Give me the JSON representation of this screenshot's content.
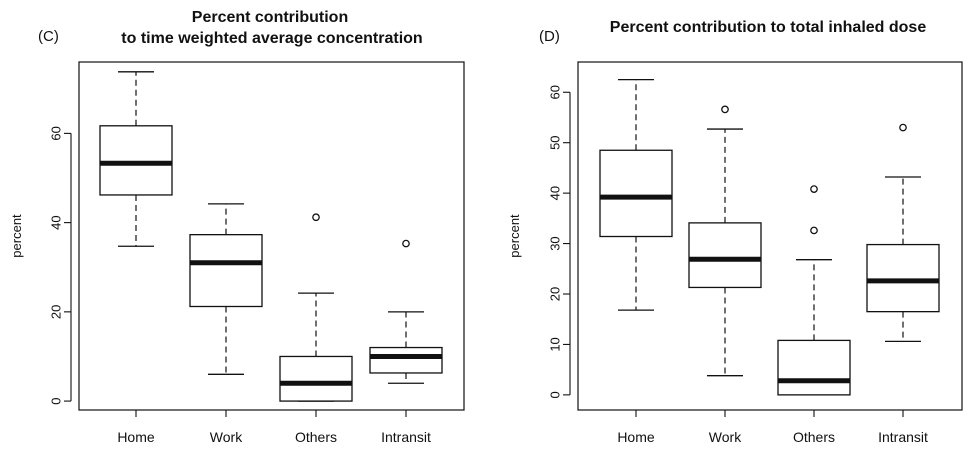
{
  "chart_data": [
    {
      "type": "boxplot",
      "panel_label": "(C)",
      "title": "Percent contribution",
      "subtitle": "to time weighted average concentration",
      "xlabel": "",
      "ylabel": "percent",
      "ylim": [
        -2,
        76
      ],
      "yticks": [
        0,
        20,
        40,
        60
      ],
      "categories": [
        "Home",
        "Work",
        "Others",
        "Intransit"
      ],
      "boxes": [
        {
          "name": "Home",
          "whisker_low": 34.7,
          "q1": 46.2,
          "median": 53.3,
          "q3": 61.7,
          "whisker_high": 73.8,
          "outliers": []
        },
        {
          "name": "Work",
          "whisker_low": 6.0,
          "q1": 21.2,
          "median": 31.0,
          "q3": 37.3,
          "whisker_high": 44.2,
          "outliers": []
        },
        {
          "name": "Others",
          "whisker_low": 0.0,
          "q1": 0.0,
          "median": 4.0,
          "q3": 10.0,
          "whisker_high": 24.2,
          "outliers": [
            41.2
          ]
        },
        {
          "name": "Intransit",
          "whisker_low": 4.0,
          "q1": 6.3,
          "median": 10.0,
          "q3": 12.0,
          "whisker_high": 20.0,
          "outliers": [
            35.3
          ]
        }
      ]
    },
    {
      "type": "boxplot",
      "panel_label": "(D)",
      "title": "Percent contribution to total inhaled dose",
      "subtitle": "",
      "xlabel": "",
      "ylabel": "percent",
      "ylim": [
        -3,
        66
      ],
      "yticks": [
        0,
        10,
        20,
        30,
        40,
        50,
        60
      ],
      "categories": [
        "Home",
        "Work",
        "Others",
        "Intransit"
      ],
      "boxes": [
        {
          "name": "Home",
          "whisker_low": 16.8,
          "q1": 31.4,
          "median": 39.2,
          "q3": 48.5,
          "whisker_high": 62.5,
          "outliers": []
        },
        {
          "name": "Work",
          "whisker_low": 3.8,
          "q1": 21.3,
          "median": 26.9,
          "q3": 34.1,
          "whisker_high": 52.7,
          "outliers": [
            56.6
          ]
        },
        {
          "name": "Others",
          "whisker_low": 0.0,
          "q1": 0.0,
          "median": 2.8,
          "q3": 10.8,
          "whisker_high": 26.8,
          "outliers": [
            32.6,
            40.8
          ]
        },
        {
          "name": "Intransit",
          "whisker_low": 10.6,
          "q1": 16.5,
          "median": 22.6,
          "q3": 29.8,
          "whisker_high": 43.2,
          "outliers": [
            53.0
          ]
        }
      ]
    }
  ]
}
